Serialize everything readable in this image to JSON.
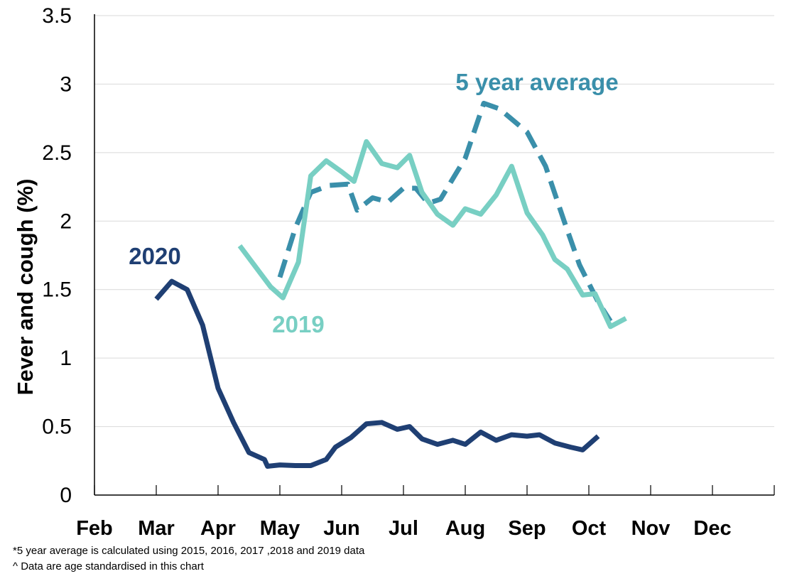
{
  "chart_data": {
    "type": "line",
    "ylabel": "Fever and cough (%)",
    "xlabel": "",
    "ylim": [
      0,
      3.5
    ],
    "yticks": [
      "0",
      "0.5",
      "1",
      "1.5",
      "2",
      "2.5",
      "3",
      "3.5"
    ],
    "xticks": [
      "Feb",
      "Mar",
      "Apr",
      "May",
      "Jun",
      "Jul",
      "Aug",
      "Sep",
      "Oct",
      "Nov",
      "Dec"
    ],
    "grid": "horizontal",
    "series": [
      {
        "name": "2020",
        "color": "#1f3f73",
        "style": "solid",
        "points": [
          [
            "Mar",
            1.43
          ],
          [
            "Mar+0.25",
            1.56
          ],
          [
            "Mar+0.5",
            1.5
          ],
          [
            "Mar+0.75",
            1.24
          ],
          [
            "Apr",
            0.78
          ],
          [
            "Apr+0.25",
            0.53
          ],
          [
            "Apr+0.5",
            0.31
          ],
          [
            "Apr+0.75",
            0.26
          ],
          [
            "May-0.2",
            0.21
          ],
          [
            "May",
            0.22
          ],
          [
            "May+0.25",
            0.215
          ],
          [
            "May+0.5",
            0.215
          ],
          [
            "May+0.75",
            0.26
          ],
          [
            "Jun-0.1",
            0.35
          ],
          [
            "Jun+0.15",
            0.42
          ],
          [
            "Jun+0.4",
            0.52
          ],
          [
            "Jun+0.65",
            0.53
          ],
          [
            "Jun+0.9",
            0.48
          ],
          [
            "Jul+0.1",
            0.5
          ],
          [
            "Jul+0.3",
            0.41
          ],
          [
            "Jul+0.55",
            0.37
          ],
          [
            "Jul+0.8",
            0.4
          ],
          [
            "Aug",
            0.37
          ],
          [
            "Aug+0.25",
            0.46
          ],
          [
            "Aug+0.5",
            0.4
          ],
          [
            "Aug+0.75",
            0.44
          ],
          [
            "Sep",
            0.43
          ],
          [
            "Sep+0.2",
            0.44
          ],
          [
            "Sep+0.45",
            0.38
          ],
          [
            "Sep+0.7",
            0.35
          ],
          [
            "Sep+0.9",
            0.33
          ],
          [
            "Oct+0.15",
            0.43
          ]
        ]
      },
      {
        "name": "2019",
        "color": "#78cfc3",
        "style": "solid",
        "points": [
          [
            "Apr+0.35",
            1.82
          ],
          [
            "Apr+0.6",
            1.67
          ],
          [
            "Apr+0.85",
            1.52
          ],
          [
            "May+0.05",
            1.44
          ],
          [
            "May+0.3",
            1.7
          ],
          [
            "May+0.5",
            2.33
          ],
          [
            "May+0.75",
            2.44
          ],
          [
            "Jun",
            2.36
          ],
          [
            "Jun+0.2",
            2.29
          ],
          [
            "Jun+0.4",
            2.58
          ],
          [
            "Jun+0.65",
            2.42
          ],
          [
            "Jun+0.9",
            2.39
          ],
          [
            "Jul+0.1",
            2.48
          ],
          [
            "Jul+0.3",
            2.21
          ],
          [
            "Jul+0.55",
            2.05
          ],
          [
            "Jul+0.8",
            1.97
          ],
          [
            "Aug",
            2.09
          ],
          [
            "Aug+0.25",
            2.05
          ],
          [
            "Aug+0.5",
            2.19
          ],
          [
            "Aug+0.75",
            2.4
          ],
          [
            "Sep",
            2.06
          ],
          [
            "Sep+0.25",
            1.9
          ],
          [
            "Sep+0.45",
            1.72
          ],
          [
            "Sep+0.65",
            1.65
          ],
          [
            "Sep+0.9",
            1.46
          ],
          [
            "Oct+0.1",
            1.47
          ],
          [
            "Oct+0.35",
            1.23
          ],
          [
            "Oct+0.6",
            1.29
          ]
        ]
      },
      {
        "name": "5 year average",
        "color": "#3a8faa",
        "style": "dashed",
        "points": [
          [
            "May",
            1.59
          ],
          [
            "May+0.25",
            1.95
          ],
          [
            "May+0.5",
            2.21
          ],
          [
            "May+0.8",
            2.26
          ],
          [
            "Jun+0.1",
            2.27
          ],
          [
            "Jun+0.25",
            2.08
          ],
          [
            "Jun+0.5",
            2.17
          ],
          [
            "Jun+0.75",
            2.14
          ],
          [
            "Jul",
            2.24
          ],
          [
            "Jul+0.2",
            2.24
          ],
          [
            "Jul+0.4",
            2.13
          ],
          [
            "Jul+0.6",
            2.16
          ],
          [
            "Aug",
            2.46
          ],
          [
            "Aug+0.3",
            2.86
          ],
          [
            "Aug+0.55",
            2.82
          ],
          [
            "Sep",
            2.65
          ],
          [
            "Sep+0.3",
            2.4
          ],
          [
            "Sep+0.6",
            2.0
          ],
          [
            "Sep+0.85",
            1.68
          ],
          [
            "Oct+0.15",
            1.41
          ],
          [
            "Oct+0.35",
            1.27
          ]
        ]
      }
    ],
    "annotations": [
      {
        "text": "2020",
        "series": "2020"
      },
      {
        "text": "2019",
        "series": "2019"
      },
      {
        "text": "5 year average",
        "series": "5 year average"
      }
    ]
  },
  "footnotes": [
    "*5 year average is calculated using 2015, 2016, 2017 ,2018 and 2019 data",
    "^ Data are age standardised in this chart"
  ]
}
